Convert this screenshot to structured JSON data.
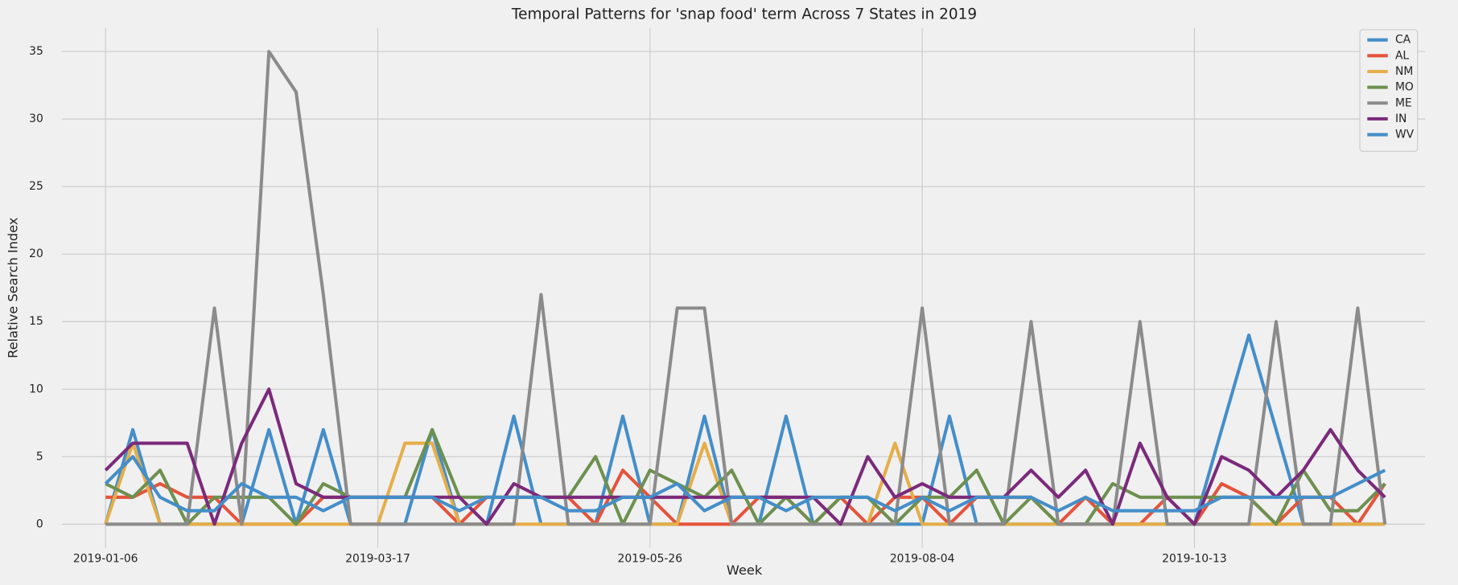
{
  "chart_data": {
    "type": "line",
    "title": "Temporal Patterns for 'snap food' term Across 7 States in 2019",
    "x_label": "Week",
    "y_label": "Relative Search Index",
    "x": [
      "2019-01-06",
      "2019-01-13",
      "2019-01-20",
      "2019-01-27",
      "2019-02-03",
      "2019-02-10",
      "2019-02-17",
      "2019-02-24",
      "2019-03-03",
      "2019-03-10",
      "2019-03-17",
      "2019-03-24",
      "2019-03-31",
      "2019-04-07",
      "2019-04-14",
      "2019-04-21",
      "2019-04-28",
      "2019-05-05",
      "2019-05-12",
      "2019-05-19",
      "2019-05-26",
      "2019-06-02",
      "2019-06-09",
      "2019-06-16",
      "2019-06-23",
      "2019-06-30",
      "2019-07-07",
      "2019-07-14",
      "2019-07-21",
      "2019-07-28",
      "2019-08-04",
      "2019-08-11",
      "2019-08-18",
      "2019-08-25",
      "2019-09-01",
      "2019-09-08",
      "2019-09-15",
      "2019-09-22",
      "2019-09-29",
      "2019-10-06",
      "2019-10-13",
      "2019-10-20",
      "2019-10-27",
      "2019-11-03",
      "2019-11-10",
      "2019-11-17",
      "2019-11-24",
      "2019-12-01"
    ],
    "xticks": [
      "2019-01-06",
      "2019-03-17",
      "2019-05-26",
      "2019-08-04",
      "2019-10-13"
    ],
    "ylim": [
      -1.75,
      36.75
    ],
    "yticks": [
      0,
      5,
      10,
      15,
      20,
      25,
      30,
      35
    ],
    "grid": true,
    "legend": "upper right",
    "series": [
      {
        "name": "CA",
        "color": "#448ec9",
        "values": [
          0,
          7,
          0,
          0,
          0,
          0,
          7,
          0,
          7,
          0,
          0,
          0,
          7,
          0,
          0,
          8,
          0,
          0,
          0,
          8,
          0,
          0,
          8,
          0,
          0,
          8,
          0,
          0,
          0,
          0,
          0,
          8,
          0,
          0,
          0,
          0,
          0,
          0,
          0,
          0,
          0,
          7,
          14,
          7,
          0,
          0,
          0,
          0
        ]
      },
      {
        "name": "AL",
        "color": "#e5533c",
        "values": [
          2,
          2,
          3,
          2,
          2,
          0,
          0,
          0,
          2,
          2,
          2,
          2,
          2,
          0,
          2,
          2,
          2,
          2,
          0,
          4,
          2,
          0,
          0,
          0,
          2,
          2,
          0,
          2,
          0,
          2,
          2,
          0,
          2,
          2,
          2,
          0,
          2,
          0,
          0,
          2,
          0,
          3,
          2,
          0,
          2,
          2,
          0,
          3
        ]
      },
      {
        "name": "NM",
        "color": "#e5ae48",
        "values": [
          0,
          6,
          0,
          0,
          0,
          0,
          0,
          0,
          0,
          0,
          0,
          6,
          6,
          0,
          0,
          0,
          0,
          0,
          0,
          0,
          0,
          0,
          6,
          0,
          0,
          0,
          0,
          0,
          0,
          6,
          0,
          0,
          0,
          0,
          0,
          0,
          0,
          0,
          0,
          0,
          0,
          0,
          0,
          0,
          0,
          0,
          0,
          0
        ]
      },
      {
        "name": "MO",
        "color": "#6d904f",
        "values": [
          3,
          2,
          4,
          0,
          2,
          2,
          2,
          0,
          3,
          2,
          2,
          2,
          7,
          2,
          2,
          2,
          2,
          2,
          5,
          0,
          4,
          3,
          2,
          4,
          0,
          2,
          0,
          2,
          2,
          0,
          2,
          2,
          4,
          0,
          2,
          0,
          0,
          3,
          2,
          2,
          2,
          2,
          2,
          0,
          4,
          1,
          1,
          3
        ]
      },
      {
        "name": "ME",
        "color": "#8b8b8b",
        "values": [
          0,
          0,
          0,
          0,
          16,
          0,
          35,
          32,
          17,
          0,
          0,
          0,
          0,
          0,
          0,
          0,
          17,
          0,
          0,
          0,
          0,
          16,
          16,
          0,
          0,
          0,
          0,
          0,
          0,
          0,
          16,
          0,
          0,
          0,
          15,
          0,
          0,
          0,
          15,
          0,
          0,
          0,
          0,
          15,
          0,
          0,
          16,
          0
        ]
      },
      {
        "name": "IN",
        "color": "#7b2a7b",
        "values": [
          4,
          6,
          6,
          6,
          0,
          6,
          10,
          3,
          2,
          2,
          2,
          2,
          2,
          2,
          0,
          3,
          2,
          2,
          2,
          2,
          2,
          2,
          2,
          2,
          2,
          2,
          2,
          0,
          5,
          2,
          3,
          2,
          2,
          2,
          4,
          2,
          4,
          0,
          6,
          2,
          0,
          5,
          4,
          2,
          4,
          7,
          4,
          2
        ]
      },
      {
        "name": "WV",
        "color": "#448ec9",
        "values": [
          3,
          5,
          2,
          1,
          1,
          3,
          2,
          2,
          1,
          2,
          2,
          2,
          2,
          1,
          2,
          2,
          2,
          1,
          1,
          2,
          2,
          3,
          1,
          2,
          2,
          1,
          2,
          2,
          2,
          1,
          2,
          1,
          2,
          2,
          2,
          1,
          2,
          1,
          1,
          1,
          1,
          2,
          2,
          2,
          2,
          2,
          3,
          4
        ]
      }
    ]
  }
}
